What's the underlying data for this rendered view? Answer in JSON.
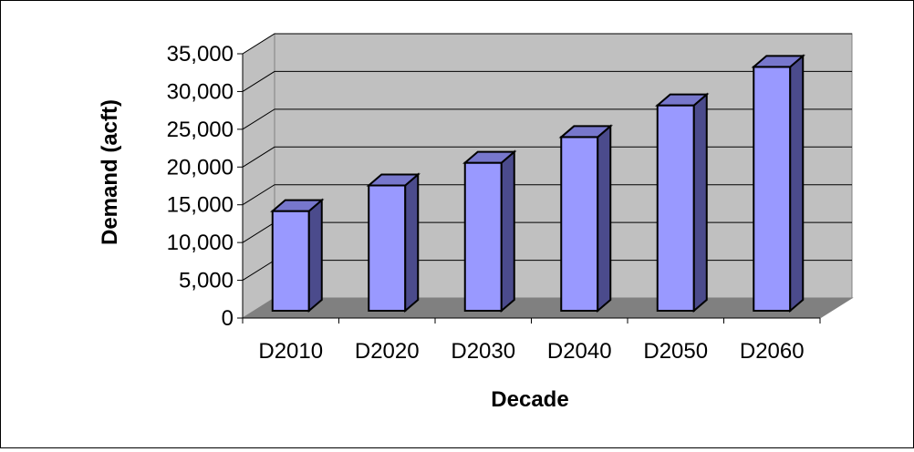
{
  "chart_data": {
    "type": "bar",
    "style": "3d-column",
    "title": "",
    "xlabel": "Decade",
    "ylabel": "Demand (acft)",
    "categories": [
      "D2010",
      "D2020",
      "D2030",
      "D2040",
      "D2050",
      "D2060"
    ],
    "values": [
      13200,
      16600,
      19600,
      23000,
      27200,
      32300
    ],
    "ylim": [
      0,
      35000
    ],
    "yticks": [
      0,
      5000,
      10000,
      15000,
      20000,
      25000,
      30000,
      35000
    ],
    "ytick_labels": [
      "0",
      "5,000",
      "10,000",
      "15,000",
      "20,000",
      "25,000",
      "30,000",
      "35,000"
    ],
    "grid": true,
    "legend": "none",
    "colors": {
      "bar_front": "#9999FF",
      "bar_side": "#4B4B8C",
      "bar_top": "#7777CC",
      "back_wall": "#C0C0C0",
      "side_wall": "#C0C0C0",
      "floor": "#808080",
      "gridline": "#000000"
    }
  }
}
